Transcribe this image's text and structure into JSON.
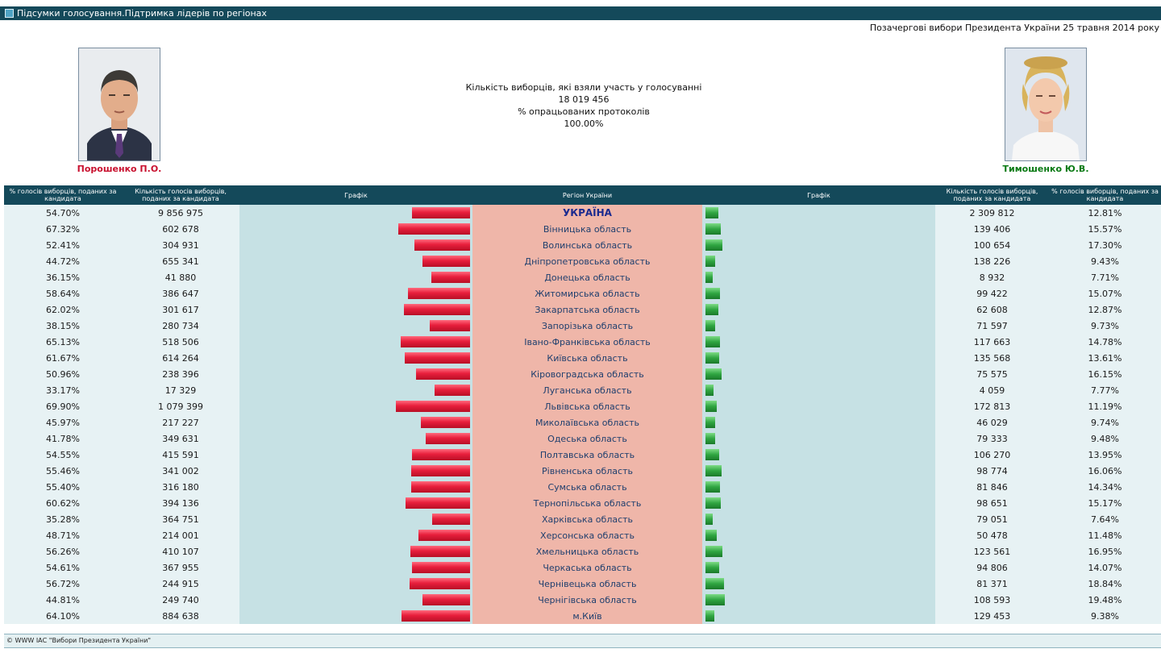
{
  "window": {
    "title": "Підсумки голосування.Підтримка лідерів по регіонах"
  },
  "header": {
    "election_title": "Позачергові вибори Президента України 25 травня 2014 року"
  },
  "stats": {
    "voters_label": "Кількість виборців, які взяли участь у голосуванні",
    "voters_value": "18 019 456",
    "protocols_label": "% опрацьованих протоколів",
    "protocols_value": "100.00%"
  },
  "candidates": {
    "left": {
      "name": "Порошенко П.О.",
      "color": "#c8102e"
    },
    "right": {
      "name": "Тимошенко Ю.В.",
      "color": "#0a7a14"
    }
  },
  "columns": {
    "left_pct": "% голосів виборців, поданих за кандидата",
    "left_votes": "Кількість голосів виборців, поданих за кандидата",
    "left_chart": "Графік",
    "region": "Регіон України",
    "right_chart": "Графік",
    "right_votes": "Кількість голосів виборців, поданих за кандидата",
    "right_pct": "% голосів виборців, поданих за кандидата"
  },
  "rows": [
    {
      "region": "УКРАЇНА",
      "l_pct": "54.70%",
      "l_votes": "9 856 975",
      "r_votes": "2 309 812",
      "r_pct": "12.81%",
      "l_share": 54.7,
      "r_share": 12.81
    },
    {
      "region": "Вінницька область",
      "l_pct": "67.32%",
      "l_votes": "602 678",
      "r_votes": "139 406",
      "r_pct": "15.57%",
      "l_share": 67.32,
      "r_share": 15.57
    },
    {
      "region": "Волинська область",
      "l_pct": "52.41%",
      "l_votes": "304 931",
      "r_votes": "100 654",
      "r_pct": "17.30%",
      "l_share": 52.41,
      "r_share": 17.3
    },
    {
      "region": "Дніпропетровська область",
      "l_pct": "44.72%",
      "l_votes": "655 341",
      "r_votes": "138 226",
      "r_pct": "9.43%",
      "l_share": 44.72,
      "r_share": 9.43
    },
    {
      "region": "Донецька область",
      "l_pct": "36.15%",
      "l_votes": "41 880",
      "r_votes": "8 932",
      "r_pct": "7.71%",
      "l_share": 36.15,
      "r_share": 7.71
    },
    {
      "region": "Житомирська область",
      "l_pct": "58.64%",
      "l_votes": "386 647",
      "r_votes": "99 422",
      "r_pct": "15.07%",
      "l_share": 58.64,
      "r_share": 15.07
    },
    {
      "region": "Закарпатська область",
      "l_pct": "62.02%",
      "l_votes": "301 617",
      "r_votes": "62 608",
      "r_pct": "12.87%",
      "l_share": 62.02,
      "r_share": 12.87
    },
    {
      "region": "Запорізька область",
      "l_pct": "38.15%",
      "l_votes": "280 734",
      "r_votes": "71 597",
      "r_pct": "9.73%",
      "l_share": 38.15,
      "r_share": 9.73
    },
    {
      "region": "Івано-Франківська область",
      "l_pct": "65.13%",
      "l_votes": "518 506",
      "r_votes": "117 663",
      "r_pct": "14.78%",
      "l_share": 65.13,
      "r_share": 14.78
    },
    {
      "region": "Київська область",
      "l_pct": "61.67%",
      "l_votes": "614 264",
      "r_votes": "135 568",
      "r_pct": "13.61%",
      "l_share": 61.67,
      "r_share": 13.61
    },
    {
      "region": "Кіровоградська область",
      "l_pct": "50.96%",
      "l_votes": "238 396",
      "r_votes": "75 575",
      "r_pct": "16.15%",
      "l_share": 50.96,
      "r_share": 16.15
    },
    {
      "region": "Луганська область",
      "l_pct": "33.17%",
      "l_votes": "17 329",
      "r_votes": "4 059",
      "r_pct": "7.77%",
      "l_share": 33.17,
      "r_share": 7.77
    },
    {
      "region": "Львівська область",
      "l_pct": "69.90%",
      "l_votes": "1 079 399",
      "r_votes": "172 813",
      "r_pct": "11.19%",
      "l_share": 69.9,
      "r_share": 11.19
    },
    {
      "region": "Миколаївська область",
      "l_pct": "45.97%",
      "l_votes": "217 227",
      "r_votes": "46 029",
      "r_pct": "9.74%",
      "l_share": 45.97,
      "r_share": 9.74
    },
    {
      "region": "Одеська область",
      "l_pct": "41.78%",
      "l_votes": "349 631",
      "r_votes": "79 333",
      "r_pct": "9.48%",
      "l_share": 41.78,
      "r_share": 9.48
    },
    {
      "region": "Полтавська область",
      "l_pct": "54.55%",
      "l_votes": "415 591",
      "r_votes": "106 270",
      "r_pct": "13.95%",
      "l_share": 54.55,
      "r_share": 13.95
    },
    {
      "region": "Рівненська область",
      "l_pct": "55.46%",
      "l_votes": "341 002",
      "r_votes": "98 774",
      "r_pct": "16.06%",
      "l_share": 55.46,
      "r_share": 16.06
    },
    {
      "region": "Сумська область",
      "l_pct": "55.40%",
      "l_votes": "316 180",
      "r_votes": "81 846",
      "r_pct": "14.34%",
      "l_share": 55.4,
      "r_share": 14.34
    },
    {
      "region": "Тернопільська область",
      "l_pct": "60.62%",
      "l_votes": "394 136",
      "r_votes": "98 651",
      "r_pct": "15.17%",
      "l_share": 60.62,
      "r_share": 15.17
    },
    {
      "region": "Харківська область",
      "l_pct": "35.28%",
      "l_votes": "364 751",
      "r_votes": "79 051",
      "r_pct": "7.64%",
      "l_share": 35.28,
      "r_share": 7.64
    },
    {
      "region": "Херсонська область",
      "l_pct": "48.71%",
      "l_votes": "214 001",
      "r_votes": "50 478",
      "r_pct": "11.48%",
      "l_share": 48.71,
      "r_share": 11.48
    },
    {
      "region": "Хмельницька область",
      "l_pct": "56.26%",
      "l_votes": "410 107",
      "r_votes": "123 561",
      "r_pct": "16.95%",
      "l_share": 56.26,
      "r_share": 16.95
    },
    {
      "region": "Черкаська область",
      "l_pct": "54.61%",
      "l_votes": "367 955",
      "r_votes": "94 806",
      "r_pct": "14.07%",
      "l_share": 54.61,
      "r_share": 14.07
    },
    {
      "region": "Чернівецька область",
      "l_pct": "56.72%",
      "l_votes": "244 915",
      "r_votes": "81 371",
      "r_pct": "18.84%",
      "l_share": 56.72,
      "r_share": 18.84
    },
    {
      "region": "Чернігівська область",
      "l_pct": "44.81%",
      "l_votes": "249 740",
      "r_votes": "108 593",
      "r_pct": "19.48%",
      "l_share": 44.81,
      "r_share": 19.48
    },
    {
      "region": "м.Київ",
      "l_pct": "64.10%",
      "l_votes": "884 638",
      "r_votes": "129 453",
      "r_pct": "9.38%",
      "l_share": 64.1,
      "r_share": 9.38
    }
  ],
  "footer": {
    "copyright": "© WWW ІАС \"Вибори Президента України\""
  }
}
